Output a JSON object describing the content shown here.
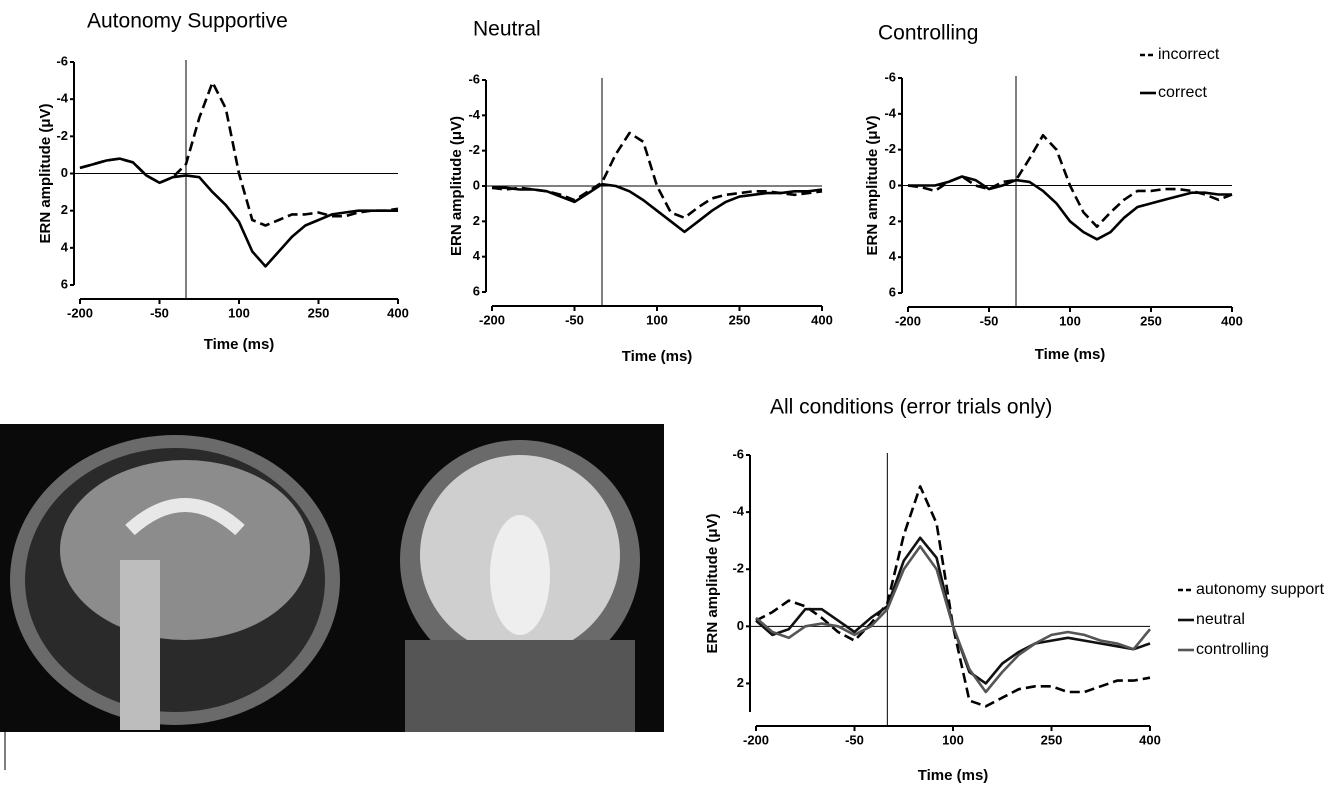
{
  "chart_data": [
    {
      "type": "line",
      "title": "Autonomy Supportive",
      "x_label": "Time (ms)",
      "y_label": "ERN amplitude (μV)",
      "x": [
        -200,
        -175,
        -150,
        -125,
        -100,
        -75,
        -50,
        -25,
        0,
        25,
        50,
        75,
        100,
        125,
        150,
        175,
        200,
        225,
        250,
        275,
        300,
        325,
        350,
        375,
        400
      ],
      "xlim": [
        -200,
        400
      ],
      "xticks": [
        -200,
        -50,
        100,
        250,
        400
      ],
      "ylim": [
        6,
        -6
      ],
      "yticks": [
        -6,
        -4,
        -2,
        0,
        2,
        4,
        6
      ],
      "hline": 0,
      "vline": 0,
      "legend": false,
      "series": [
        {
          "name": "incorrect",
          "color": "#000000",
          "dashed": true,
          "values": [
            -0.3,
            -0.5,
            -0.7,
            -0.8,
            -0.6,
            0.1,
            0.5,
            0.2,
            -0.5,
            -3,
            -4.9,
            -3.5,
            0,
            2.5,
            2.8,
            2.5,
            2.2,
            2.2,
            2.1,
            2.3,
            2.3,
            2.1,
            2,
            2,
            1.9
          ]
        },
        {
          "name": "correct",
          "color": "#000000",
          "dashed": false,
          "values": [
            -0.3,
            -0.5,
            -0.7,
            -0.8,
            -0.6,
            0.1,
            0.5,
            0.2,
            0.1,
            0.2,
            1,
            1.7,
            2.6,
            4.2,
            5,
            4.2,
            3.4,
            2.8,
            2.5,
            2.2,
            2.1,
            2,
            2,
            2,
            2
          ]
        }
      ]
    },
    {
      "type": "line",
      "title": "Neutral",
      "x_label": "Time (ms)",
      "y_label": "ERN amplitude (μV)",
      "x": [
        -200,
        -175,
        -150,
        -125,
        -100,
        -75,
        -50,
        -25,
        0,
        25,
        50,
        75,
        100,
        125,
        150,
        175,
        200,
        225,
        250,
        275,
        300,
        325,
        350,
        375,
        400
      ],
      "xlim": [
        -200,
        400
      ],
      "xticks": [
        -200,
        -50,
        100,
        250,
        400
      ],
      "ylim": [
        6,
        -6
      ],
      "yticks": [
        -6,
        -4,
        -2,
        0,
        2,
        4,
        6
      ],
      "hline": 0,
      "vline": 0,
      "legend": false,
      "series": [
        {
          "name": "incorrect",
          "color": "#000000",
          "dashed": true,
          "values": [
            0.1,
            0.2,
            0.1,
            0.2,
            0.3,
            0.5,
            0.8,
            0.3,
            -0.2,
            -1.8,
            -3,
            -2.5,
            0,
            1.5,
            1.8,
            1.2,
            0.7,
            0.5,
            0.4,
            0.3,
            0.3,
            0.4,
            0.5,
            0.4,
            0.3
          ]
        },
        {
          "name": "correct",
          "color": "#000000",
          "dashed": false,
          "values": [
            0.1,
            0.1,
            0.2,
            0.2,
            0.3,
            0.6,
            0.9,
            0.4,
            -0.1,
            0,
            0.3,
            0.8,
            1.4,
            2,
            2.6,
            2,
            1.4,
            0.9,
            0.6,
            0.5,
            0.4,
            0.4,
            0.3,
            0.3,
            0.2
          ]
        }
      ]
    },
    {
      "type": "line",
      "title": "Controlling",
      "x_label": "Time (ms)",
      "y_label": "ERN amplitude (μV)",
      "x": [
        -200,
        -175,
        -150,
        -125,
        -100,
        -75,
        -50,
        -25,
        0,
        25,
        50,
        75,
        100,
        125,
        150,
        175,
        200,
        225,
        250,
        275,
        300,
        325,
        350,
        375,
        400
      ],
      "xlim": [
        -200,
        400
      ],
      "xticks": [
        -200,
        -50,
        100,
        250,
        400
      ],
      "ylim": [
        6,
        -6
      ],
      "yticks": [
        -6,
        -4,
        -2,
        0,
        2,
        4,
        6
      ],
      "hline": 0,
      "vline": 0,
      "legend": true,
      "series": [
        {
          "name": "incorrect",
          "color": "#000000",
          "dashed": true,
          "values": [
            0,
            0.1,
            0.3,
            -0.2,
            -0.5,
            0,
            0.2,
            -0.2,
            -0.3,
            -1.5,
            -2.8,
            -2,
            0,
            1.5,
            2.3,
            1.5,
            0.8,
            0.3,
            0.3,
            0.2,
            0.2,
            0.3,
            0.5,
            0.8,
            0.5
          ]
        },
        {
          "name": "correct",
          "color": "#000000",
          "dashed": false,
          "values": [
            0,
            0,
            0,
            -0.2,
            -0.5,
            -0.3,
            0.2,
            0,
            -0.3,
            -0.2,
            0.3,
            1,
            2,
            2.6,
            3,
            2.6,
            1.8,
            1.2,
            1,
            0.8,
            0.6,
            0.4,
            0.4,
            0.5,
            0.5
          ]
        }
      ]
    },
    {
      "type": "line",
      "title": "All conditions (error trials only)",
      "x_label": "Time (ms)",
      "y_label": "ERN amplitude (μV)",
      "x": [
        -200,
        -175,
        -150,
        -125,
        -100,
        -75,
        -50,
        -25,
        0,
        25,
        50,
        75,
        100,
        125,
        150,
        175,
        200,
        225,
        250,
        275,
        300,
        325,
        350,
        375,
        400
      ],
      "xlim": [
        -200,
        400
      ],
      "xticks": [
        -200,
        -50,
        100,
        250,
        400
      ],
      "ylim": [
        3,
        -6
      ],
      "yticks": [
        -6,
        -4,
        -2,
        0,
        2
      ],
      "hline": 0,
      "vline": 0,
      "legend": true,
      "series": [
        {
          "name": "autonomy support",
          "color": "#000000",
          "dashed": true,
          "values": [
            -0.2,
            -0.5,
            -0.9,
            -0.7,
            -0.3,
            0.2,
            0.5,
            -0.1,
            -0.8,
            -3.2,
            -4.9,
            -3.6,
            0,
            2.6,
            2.8,
            2.5,
            2.2,
            2.1,
            2.1,
            2.3,
            2.3,
            2.1,
            1.9,
            1.9,
            1.8
          ]
        },
        {
          "name": "neutral",
          "color": "#111111",
          "dashed": false,
          "values": [
            -0.2,
            0.3,
            0.1,
            -0.6,
            -0.6,
            -0.2,
            0.2,
            -0.3,
            -0.7,
            -2.3,
            -3.1,
            -2.4,
            0,
            1.6,
            2,
            1.3,
            0.9,
            0.6,
            0.5,
            0.4,
            0.5,
            0.6,
            0.7,
            0.8,
            0.6
          ]
        },
        {
          "name": "controlling",
          "color": "#555555",
          "dashed": false,
          "values": [
            -0.3,
            0.2,
            0.4,
            0,
            -0.1,
            0,
            0.3,
            0,
            -0.6,
            -2,
            -2.8,
            -2,
            0,
            1.5,
            2.3,
            1.6,
            1,
            0.6,
            0.3,
            0.2,
            0.3,
            0.5,
            0.6,
            0.8,
            0.1
          ]
        }
      ]
    }
  ]
}
